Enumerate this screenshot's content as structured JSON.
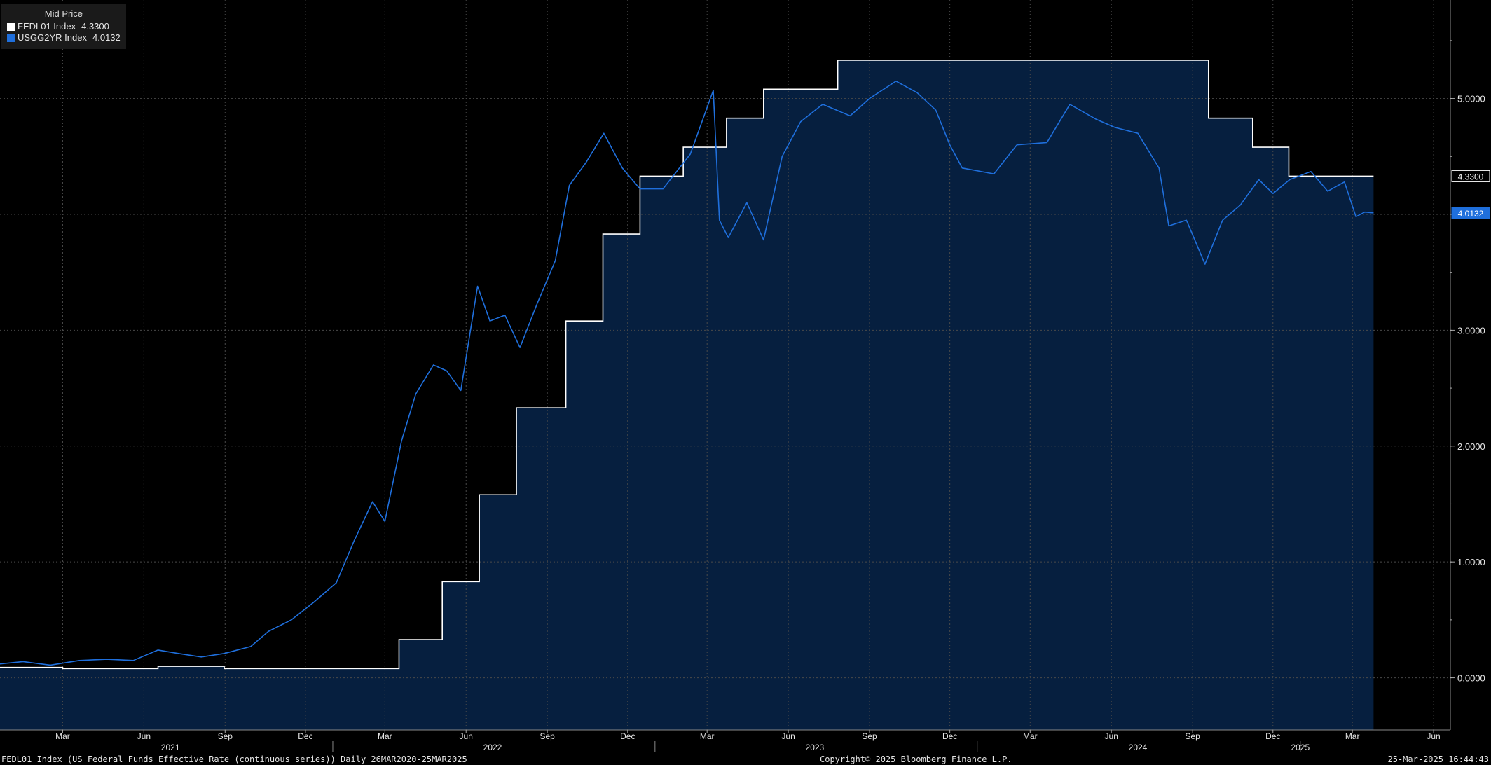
{
  "legend": {
    "title": "Mid Price",
    "items": [
      {
        "name": "FEDL01 Index",
        "value": "4.3300",
        "color": "#ffffff"
      },
      {
        "name": "USGG2YR Index",
        "value": "4.0132",
        "color": "#1f6fdc"
      }
    ]
  },
  "footer": {
    "left": "FEDL01 Index (US Federal Funds Effective Rate (continuous series))  Daily 26MAR2020-25MAR2025",
    "center": "Copyright© 2025 Bloomberg Finance L.P.",
    "right": "25-Mar-2025 16:44:43"
  },
  "chart_data": {
    "type": "line",
    "x_range": [
      "2020-12-20",
      "2025-06-20"
    ],
    "ylim": [
      -0.45,
      5.85
    ],
    "y_ticks": [
      "0.0000",
      "1.0000",
      "2.0000",
      "3.0000",
      "4.0000",
      "5.0000"
    ],
    "month_ticks": [
      {
        "date": "2021-03-01",
        "label": "Mar"
      },
      {
        "date": "2021-06-01",
        "label": "Jun"
      },
      {
        "date": "2021-09-01",
        "label": "Sep"
      },
      {
        "date": "2021-12-01",
        "label": "Dec"
      },
      {
        "date": "2022-03-01",
        "label": "Mar"
      },
      {
        "date": "2022-06-01",
        "label": "Jun"
      },
      {
        "date": "2022-09-01",
        "label": "Sep"
      },
      {
        "date": "2022-12-01",
        "label": "Dec"
      },
      {
        "date": "2023-03-01",
        "label": "Mar"
      },
      {
        "date": "2023-06-01",
        "label": "Jun"
      },
      {
        "date": "2023-09-01",
        "label": "Sep"
      },
      {
        "date": "2023-12-01",
        "label": "Dec"
      },
      {
        "date": "2024-03-01",
        "label": "Mar"
      },
      {
        "date": "2024-06-01",
        "label": "Jun"
      },
      {
        "date": "2024-09-01",
        "label": "Sep"
      },
      {
        "date": "2024-12-01",
        "label": "Dec"
      },
      {
        "date": "2025-03-01",
        "label": "Mar"
      },
      {
        "date": "2025-06-01",
        "label": "Jun"
      }
    ],
    "year_labels": [
      {
        "date": "2021-07-01",
        "label": "2021"
      },
      {
        "date": "2022-07-01",
        "label": "2022"
      },
      {
        "date": "2023-07-01",
        "label": "2023"
      },
      {
        "date": "2024-07-01",
        "label": "2024"
      },
      {
        "date": "2025-01-01",
        "label": "2025"
      }
    ],
    "year_dividers": [
      "2022-01-01",
      "2023-01-01",
      "2024-01-01",
      "2025-01-01"
    ],
    "last_value_labels": [
      {
        "series": "FEDL01 Index",
        "value": 4.33,
        "label": "4.3300"
      },
      {
        "series": "USGG2YR Index",
        "value": 4.0132,
        "label": "4.0132"
      }
    ],
    "series": [
      {
        "name": "FEDL01 Index",
        "color": "#ffffff",
        "area_fill": "#061f3f",
        "step": true,
        "points": [
          [
            "2020-12-20",
            0.09
          ],
          [
            "2021-03-01",
            0.08
          ],
          [
            "2021-06-17",
            0.1
          ],
          [
            "2021-08-31",
            0.08
          ],
          [
            "2021-12-31",
            0.08
          ],
          [
            "2022-03-17",
            0.33
          ],
          [
            "2022-05-05",
            0.83
          ],
          [
            "2022-06-16",
            1.58
          ],
          [
            "2022-07-28",
            2.33
          ],
          [
            "2022-09-22",
            3.08
          ],
          [
            "2022-11-03",
            3.83
          ],
          [
            "2022-12-15",
            4.33
          ],
          [
            "2023-02-02",
            4.58
          ],
          [
            "2023-03-23",
            4.83
          ],
          [
            "2023-05-04",
            5.08
          ],
          [
            "2023-07-27",
            5.33
          ],
          [
            "2024-09-19",
            4.83
          ],
          [
            "2024-11-08",
            4.58
          ],
          [
            "2024-12-19",
            4.33
          ],
          [
            "2025-03-25",
            4.33
          ]
        ]
      },
      {
        "name": "USGG2YR Index",
        "color": "#1f6fdc",
        "step": false,
        "points": [
          [
            "2020-12-20",
            0.12
          ],
          [
            "2021-01-15",
            0.14
          ],
          [
            "2021-02-15",
            0.11
          ],
          [
            "2021-03-20",
            0.15
          ],
          [
            "2021-04-20",
            0.16
          ],
          [
            "2021-05-20",
            0.15
          ],
          [
            "2021-06-17",
            0.24
          ],
          [
            "2021-07-10",
            0.21
          ],
          [
            "2021-08-05",
            0.18
          ],
          [
            "2021-08-31",
            0.21
          ],
          [
            "2021-09-30",
            0.27
          ],
          [
            "2021-10-20",
            0.4
          ],
          [
            "2021-11-15",
            0.5
          ],
          [
            "2021-12-10",
            0.65
          ],
          [
            "2022-01-05",
            0.82
          ],
          [
            "2022-01-25",
            1.18
          ],
          [
            "2022-02-15",
            1.52
          ],
          [
            "2022-03-01",
            1.35
          ],
          [
            "2022-03-20",
            2.05
          ],
          [
            "2022-04-05",
            2.45
          ],
          [
            "2022-04-25",
            2.7
          ],
          [
            "2022-05-10",
            2.65
          ],
          [
            "2022-05-26",
            2.48
          ],
          [
            "2022-06-14",
            3.38
          ],
          [
            "2022-06-28",
            3.08
          ],
          [
            "2022-07-15",
            3.13
          ],
          [
            "2022-08-01",
            2.85
          ],
          [
            "2022-08-20",
            3.22
          ],
          [
            "2022-09-10",
            3.6
          ],
          [
            "2022-09-26",
            4.25
          ],
          [
            "2022-10-15",
            4.45
          ],
          [
            "2022-11-04",
            4.7
          ],
          [
            "2022-11-25",
            4.4
          ],
          [
            "2022-12-15",
            4.22
          ],
          [
            "2023-01-10",
            4.22
          ],
          [
            "2023-02-10",
            4.52
          ],
          [
            "2023-03-08",
            5.07
          ],
          [
            "2023-03-15",
            3.95
          ],
          [
            "2023-03-25",
            3.8
          ],
          [
            "2023-04-15",
            4.1
          ],
          [
            "2023-05-04",
            3.78
          ],
          [
            "2023-05-25",
            4.5
          ],
          [
            "2023-06-15",
            4.8
          ],
          [
            "2023-07-10",
            4.95
          ],
          [
            "2023-08-10",
            4.85
          ],
          [
            "2023-09-01",
            5.0
          ],
          [
            "2023-10-01",
            5.15
          ],
          [
            "2023-10-25",
            5.05
          ],
          [
            "2023-11-15",
            4.9
          ],
          [
            "2023-12-01",
            4.6
          ],
          [
            "2023-12-15",
            4.4
          ],
          [
            "2024-01-20",
            4.35
          ],
          [
            "2024-02-15",
            4.6
          ],
          [
            "2024-03-20",
            4.62
          ],
          [
            "2024-04-15",
            4.95
          ],
          [
            "2024-05-15",
            4.82
          ],
          [
            "2024-06-05",
            4.75
          ],
          [
            "2024-07-01",
            4.7
          ],
          [
            "2024-07-25",
            4.4
          ],
          [
            "2024-08-05",
            3.9
          ],
          [
            "2024-08-25",
            3.95
          ],
          [
            "2024-09-15",
            3.57
          ],
          [
            "2024-10-05",
            3.95
          ],
          [
            "2024-10-25",
            4.08
          ],
          [
            "2024-11-15",
            4.3
          ],
          [
            "2024-12-01",
            4.18
          ],
          [
            "2024-12-20",
            4.3
          ],
          [
            "2025-01-13",
            4.37
          ],
          [
            "2025-02-01",
            4.2
          ],
          [
            "2025-02-20",
            4.28
          ],
          [
            "2025-03-05",
            3.98
          ],
          [
            "2025-03-15",
            4.02
          ],
          [
            "2025-03-25",
            4.0132
          ]
        ]
      }
    ]
  }
}
